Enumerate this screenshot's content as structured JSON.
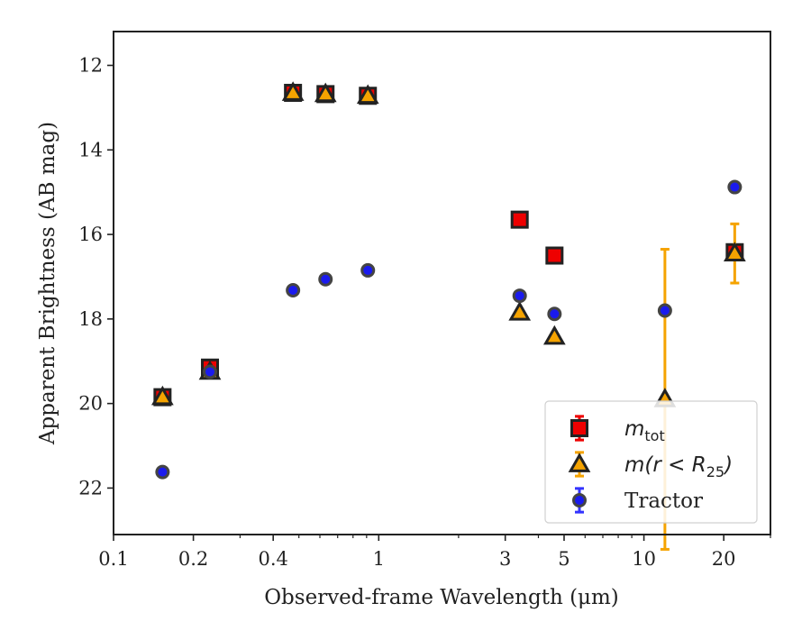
{
  "chart_data": {
    "type": "scatter",
    "xscale": "log",
    "yinverted": true,
    "xlim": [
      0.1,
      30
    ],
    "ylim": [
      23.1,
      11.2
    ],
    "xlabel": "Observed-frame Wavelength (μm)",
    "ylabel": "Apparent Brightness (AB mag)",
    "xticks": [
      {
        "v": 0.1,
        "label": "0.1"
      },
      {
        "v": 0.2,
        "label": "0.2"
      },
      {
        "v": 0.4,
        "label": "0.4"
      },
      {
        "v": 1,
        "label": "1"
      },
      {
        "v": 3,
        "label": "3"
      },
      {
        "v": 5,
        "label": "5"
      },
      {
        "v": 10,
        "label": "10"
      },
      {
        "v": 20,
        "label": "20"
      }
    ],
    "yticks": [
      {
        "v": 12,
        "label": "12"
      },
      {
        "v": 14,
        "label": "14"
      },
      {
        "v": 16,
        "label": "16"
      },
      {
        "v": 18,
        "label": "18"
      },
      {
        "v": 20,
        "label": "20"
      },
      {
        "v": 22,
        "label": "22"
      }
    ],
    "legend": {
      "position": "lower-right",
      "entries": [
        {
          "math_base": "m",
          "math_sub": "tot",
          "rest": ""
        },
        {
          "math_base": "m(r < R",
          "math_sub": "25",
          "rest": ")"
        },
        {
          "math_base": "",
          "math_sub": "",
          "rest": "Tractor"
        }
      ]
    },
    "series": [
      {
        "marker": "square",
        "face": "#ee0000",
        "errcolor": "#ee0000",
        "points": [
          {
            "x": 0.153,
            "y": 19.85,
            "err": 0.05
          },
          {
            "x": 0.231,
            "y": 19.15,
            "err": 0.05
          },
          {
            "x": 0.475,
            "y": 12.65,
            "err": 0.03
          },
          {
            "x": 0.63,
            "y": 12.68,
            "err": 0.03
          },
          {
            "x": 0.91,
            "y": 12.72,
            "err": 0.03
          },
          {
            "x": 3.4,
            "y": 15.65,
            "err": 0.03
          },
          {
            "x": 4.6,
            "y": 16.5,
            "err": 0.03
          },
          {
            "x": 22.0,
            "y": 16.42,
            "err": 0.05
          }
        ]
      },
      {
        "marker": "triangle",
        "face": "#f5a300",
        "errcolor": "#f5a300",
        "points": [
          {
            "x": 0.153,
            "y": 19.85,
            "err": 0.05
          },
          {
            "x": 0.231,
            "y": 19.25,
            "err": 0.05
          },
          {
            "x": 0.475,
            "y": 12.65,
            "err": 0.03
          },
          {
            "x": 0.63,
            "y": 12.68,
            "err": 0.03
          },
          {
            "x": 0.91,
            "y": 12.72,
            "err": 0.03
          },
          {
            "x": 3.4,
            "y": 17.85,
            "err": 0.03
          },
          {
            "x": 4.6,
            "y": 18.42,
            "err": 0.03
          },
          {
            "x": 12.0,
            "y": 19.9,
            "err": 3.55
          },
          {
            "x": 22.0,
            "y": 16.45,
            "err": 0.7
          }
        ]
      },
      {
        "marker": "circle",
        "face": "#1a1aee",
        "errcolor": "#3333ff",
        "points": [
          {
            "x": 0.153,
            "y": 21.62,
            "err": 0.05
          },
          {
            "x": 0.231,
            "y": 19.25,
            "err": 0.05
          },
          {
            "x": 0.475,
            "y": 17.32,
            "err": 0.03
          },
          {
            "x": 0.63,
            "y": 17.06,
            "err": 0.03
          },
          {
            "x": 0.91,
            "y": 16.85,
            "err": 0.03
          },
          {
            "x": 3.4,
            "y": 17.45,
            "err": 0.03
          },
          {
            "x": 4.6,
            "y": 17.88,
            "err": 0.03
          },
          {
            "x": 12.0,
            "y": 17.8,
            "err": 0.05
          },
          {
            "x": 22.0,
            "y": 14.88,
            "err": 0.05
          }
        ]
      }
    ]
  }
}
